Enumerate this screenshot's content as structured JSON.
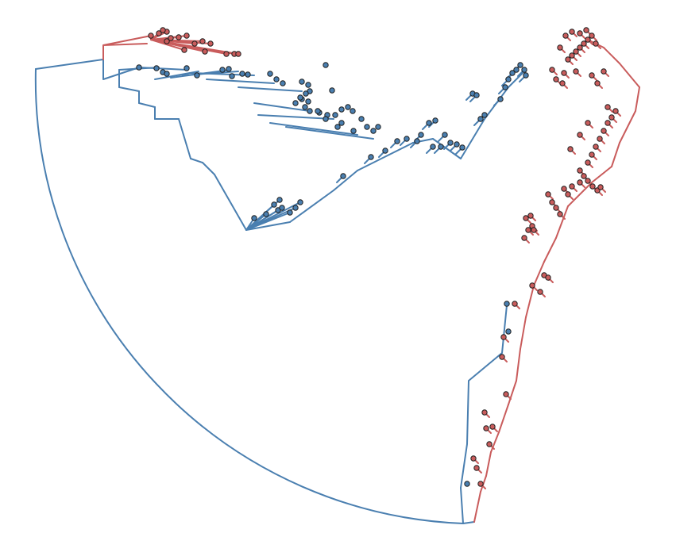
{
  "figure": {
    "type": "phylogenetic-tree",
    "layout": "circular-fan",
    "clades": [
      {
        "name": "blue-clade",
        "color": "#4A7FB0"
      },
      {
        "name": "red-clade",
        "color": "#C95C5C"
      }
    ],
    "legend": "none",
    "title": "",
    "tip_labels": "none"
  }
}
